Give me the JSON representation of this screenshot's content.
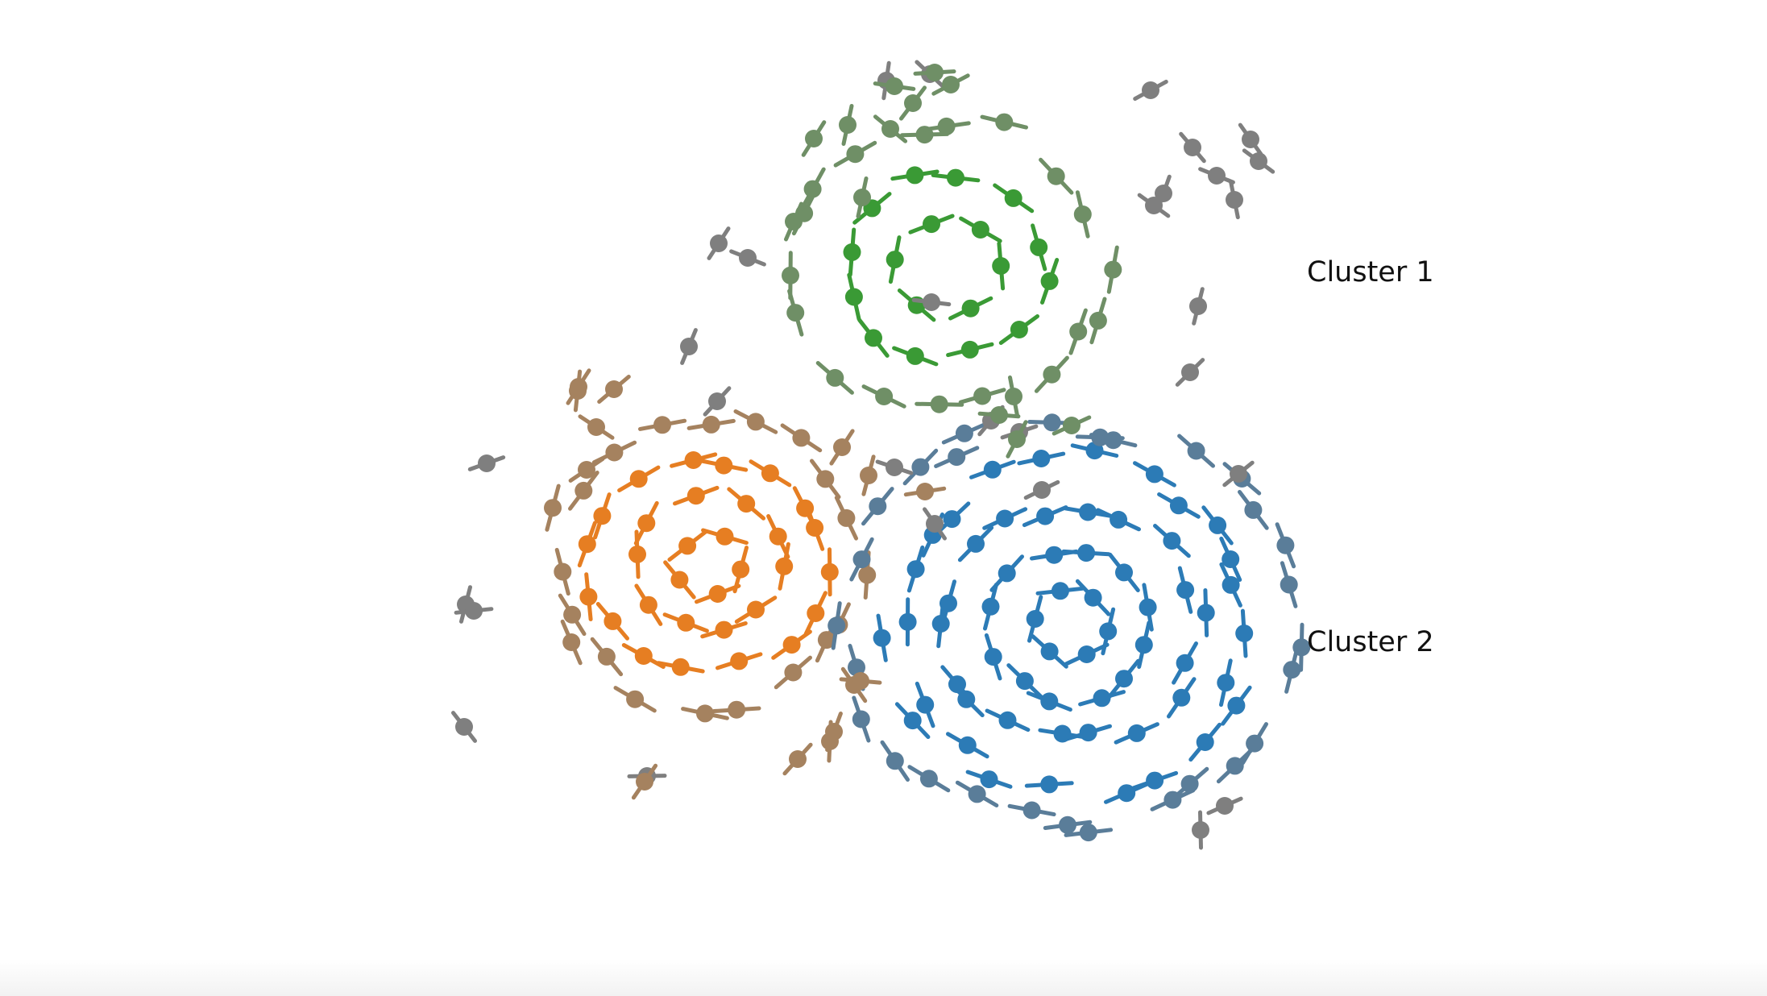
{
  "labels": {
    "cluster_1": "Cluster 1",
    "cluster_2": "Cluster 2"
  },
  "colors": {
    "green": "#3a9a35",
    "green_gray": "#6f8f66",
    "orange": "#e67e22",
    "brown": "#a5825f",
    "blue": "#2c7bb6",
    "blue_gray": "#5a7d99",
    "gray": "#7f7f7f"
  }
}
